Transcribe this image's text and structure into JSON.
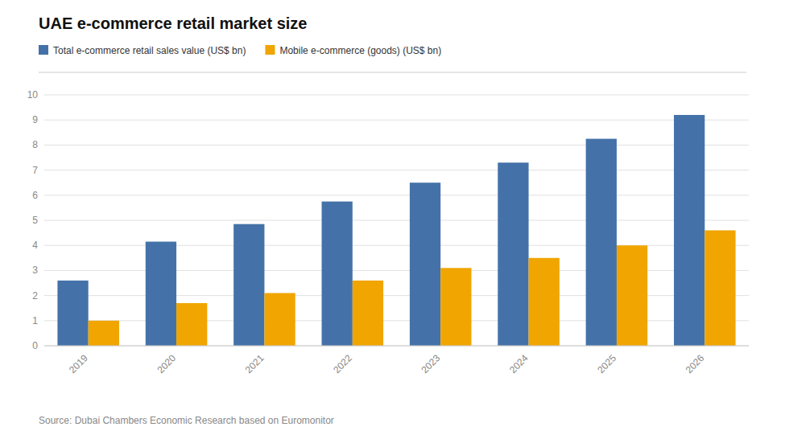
{
  "chart_data": {
    "type": "bar",
    "title": "UAE e-commerce retail market size",
    "categories": [
      "2019",
      "2020",
      "2021",
      "2022",
      "2023",
      "2024",
      "2025",
      "2026"
    ],
    "series": [
      {
        "name": "Total e-commerce retail sales value (US$ bn)",
        "color": "#4472a8",
        "values": [
          2.6,
          4.15,
          4.85,
          5.75,
          6.5,
          7.3,
          8.25,
          9.2
        ]
      },
      {
        "name": "Mobile e-commerce (goods) (US$ bn)",
        "color": "#f0a500",
        "values": [
          1.0,
          1.7,
          2.1,
          2.6,
          3.1,
          3.5,
          4.0,
          4.6
        ]
      }
    ],
    "ylim": [
      0,
      10
    ],
    "yticks": [
      0,
      1,
      2,
      3,
      4,
      5,
      6,
      7,
      8,
      9,
      10
    ],
    "grid": true,
    "legend": "upper left",
    "annotations": [
      "Source: Dubai Chambers Economic Research based on Euromonitor"
    ]
  }
}
